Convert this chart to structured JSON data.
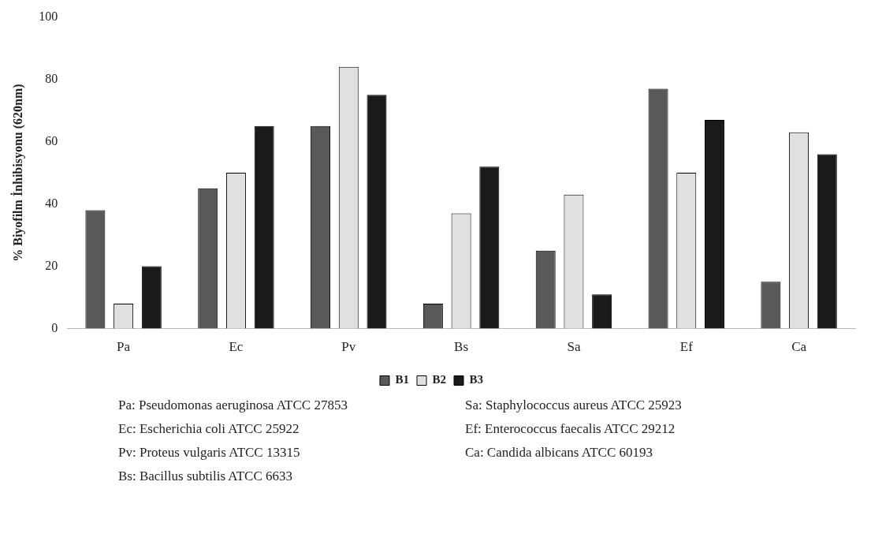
{
  "chart_data": {
    "type": "bar",
    "ylabel": "% Biyofilm İnhibisyonu (620nm)",
    "categories": [
      "Pa",
      "Ec",
      "Pv",
      "Bs",
      "Sa",
      "Ef",
      "Ca"
    ],
    "series": [
      {
        "name": "B1",
        "color": "#595959",
        "values": [
          38,
          45,
          65,
          8,
          25,
          77,
          15
        ]
      },
      {
        "name": "B2",
        "color": "#e0e0e0",
        "values": [
          8,
          50,
          84,
          37,
          43,
          50,
          63
        ]
      },
      {
        "name": "B3",
        "color": "#1a1a1a",
        "values": [
          20,
          65,
          75,
          52,
          11,
          67,
          56
        ]
      }
    ],
    "ylim": [
      0,
      100
    ],
    "yticks": [
      0,
      20,
      40,
      60,
      80,
      100
    ],
    "grid": false,
    "legend": "bottom",
    "annotations": [
      "Pa: Pseudomonas aeruginosa ATCC 27853",
      "Ec: Escherichia coli ATCC 25922",
      "Pv: Proteus vulgaris ATCC 13315",
      "Bs: Bacillus subtilis ATCC 6633",
      "Sa: Staphylococcus aureus ATCC 25923",
      "Ef: Enterococcus faecalis ATCC 29212",
      "Ca: Candida albicans ATCC 60193"
    ]
  }
}
